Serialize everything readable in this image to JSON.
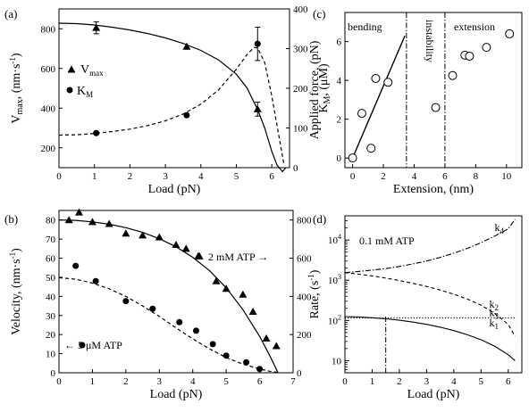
{
  "chart_data": [
    {
      "panel": "(a)",
      "type": "scatter",
      "xlabel": "Load (pN)",
      "ylabel": "V_max, (nm·s^-1)",
      "ylabel_right": "K_M, (μM)",
      "xlim": [
        0,
        6.5
      ],
      "ylim": [
        100,
        900
      ],
      "ylim_right": [
        0,
        400
      ],
      "xticks": [
        "0",
        "1",
        "2",
        "3",
        "4",
        "5",
        "6"
      ],
      "yticks": [
        "200",
        "400",
        "600",
        "800"
      ],
      "yticks_right": [
        "0",
        "100",
        "200",
        "300",
        "400"
      ],
      "series": [
        {
          "name": "V_max",
          "marker": "triangle",
          "axis": "left",
          "x": [
            1.05,
            3.6,
            5.6
          ],
          "y": [
            805,
            710,
            395
          ],
          "err": [
            30,
            0,
            35
          ],
          "fit": {
            "x": [
              0,
              0.5,
              1,
              1.5,
              2,
              2.5,
              3,
              3.5,
              4,
              4.5,
              5,
              5.3,
              5.6,
              5.8,
              6,
              6.15,
              6.3,
              6.4
            ],
            "y": [
              828,
              826,
              819,
              808,
              794,
              776,
              754,
              726,
              691,
              643,
              571,
              502,
              393,
              300,
              182,
              112,
              80,
              100
            ]
          }
        },
        {
          "name": "K_M",
          "marker": "circle",
          "axis": "right",
          "x": [
            1.05,
            3.6,
            5.6
          ],
          "y": [
            87,
            132,
            312
          ],
          "err": [
            0,
            0,
            42
          ],
          "fit": {
            "x": [
              0,
              0.5,
              1,
              1.5,
              2,
              2.5,
              3,
              3.5,
              4,
              4.5,
              5,
              5.3,
              5.5,
              5.6,
              5.8,
              6,
              6.2,
              6.35
            ],
            "y": [
              82,
              83,
              86,
              91,
              97,
              106,
              118,
              135,
              160,
              196,
              248,
              285,
              303,
              302,
              265,
              180,
              80,
              5
            ]
          }
        }
      ],
      "legend": [
        {
          "name": "V",
          "sub": "max"
        },
        {
          "name": "K",
          "sub": "M"
        }
      ]
    },
    {
      "panel": "(b)",
      "type": "scatter",
      "xlabel": "Load (pN)",
      "ylabel": "Velocity, (nm·s^-1)",
      "xlim": [
        0,
        7
      ],
      "ylim": [
        0,
        85
      ],
      "ylim_right": [
        0,
        850
      ],
      "xticks": [
        "0",
        "1",
        "2",
        "3",
        "4",
        "5",
        "6",
        "7"
      ],
      "yticks": [
        "0",
        "10",
        "20",
        "30",
        "40",
        "50",
        "60",
        "70",
        "80"
      ],
      "yticks_right": [
        "0",
        "200",
        "400",
        "600",
        "800"
      ],
      "series": [
        {
          "name": "2 mM ATP",
          "marker": "triangle",
          "axis": "left",
          "x": [
            0.3,
            0.6,
            1.0,
            1.5,
            2.0,
            2.5,
            3.0,
            3.5,
            3.8,
            4.2,
            4.7,
            5.0,
            5.5,
            5.8,
            6.2,
            6.5
          ],
          "y": [
            80,
            84,
            79,
            78,
            73,
            72,
            71,
            67,
            65,
            61,
            48,
            44,
            41,
            32,
            18,
            14
          ],
          "fit": {
            "x": [
              0,
              0.5,
              1,
              1.5,
              2,
              2.5,
              3,
              3.5,
              4,
              4.5,
              5,
              5.5,
              6,
              6.3,
              6.55
            ],
            "y": [
              80,
              79.8,
              79,
              77.8,
              76,
              73.5,
              70.2,
              66,
              60.5,
              53.5,
              44.5,
              33,
              19,
              9,
              0
            ]
          }
        },
        {
          "name": "5 μM ATP",
          "marker": "circle",
          "axis": "right",
          "x": [
            0.5,
            1.1,
            2.0,
            2.8,
            3.6,
            4.1,
            4.6,
            5.0,
            5.6,
            6.0
          ],
          "y": [
            560,
            480,
            375,
            335,
            265,
            220,
            150,
            90,
            55,
            20
          ],
          "fit": {
            "x": [
              0,
              0.5,
              1,
              1.5,
              2,
              2.5,
              3,
              3.5,
              4,
              4.5,
              5,
              5.5,
              6,
              6.3,
              6.6
            ],
            "y": [
              498,
              490,
              470,
              440,
              400,
              350,
              295,
              235,
              178,
              125,
              80,
              45,
              20,
              8,
              0
            ]
          }
        }
      ],
      "labels": {
        "high": "2 mM ATP",
        "low": "5 μM ATP"
      }
    },
    {
      "panel": "(c)",
      "type": "scatter",
      "xlabel": "Extension, (nm)",
      "ylabel": "Applied force, (pN)",
      "xlim": [
        -0.5,
        11
      ],
      "ylim": [
        -0.5,
        7.5
      ],
      "xticks": [
        "0",
        "2",
        "4",
        "6",
        "8",
        "10"
      ],
      "yticks": [
        "0",
        "2",
        "4",
        "6"
      ],
      "regions": [
        "bending",
        "instability",
        "extension"
      ],
      "boundaries": [
        3.5,
        6
      ],
      "series": [
        {
          "name": "",
          "marker": "open-circle",
          "x": [
            0,
            0.6,
            1.2,
            1.5,
            2.3,
            5.4,
            6.5,
            7.3,
            7.6,
            8.7,
            10.2
          ],
          "y": [
            0,
            2.3,
            0.5,
            4.1,
            3.9,
            2.6,
            4.25,
            5.3,
            5.25,
            5.7,
            6.4
          ],
          "fit": {
            "x": [
              0,
              3.4
            ],
            "y": [
              0,
              6.3
            ]
          }
        }
      ]
    },
    {
      "panel": "(d)",
      "type": "line",
      "xlabel": "Load (pN)",
      "ylabel": "Rate, (s^-1)",
      "yscale": "log",
      "xlim": [
        0,
        6.5
      ],
      "ylim": [
        5,
        40000
      ],
      "xticks": [
        "0",
        "1",
        "2",
        "3",
        "4",
        "5",
        "6"
      ],
      "yticks": [
        "10",
        "10^2",
        "10^3",
        "10^4"
      ],
      "annotation": "0.1 mM ATP",
      "marker_x": 1.5,
      "series": [
        {
          "name": "k_4",
          "style": "dashdot",
          "x": [
            0,
            0.5,
            1,
            1.5,
            2,
            2.5,
            3,
            3.5,
            4,
            4.5,
            5,
            5.5,
            6,
            6.25
          ],
          "y": [
            1550,
            1650,
            1780,
            1950,
            2200,
            2550,
            3000,
            3700,
            4700,
            6200,
            8600,
            12500,
            19000,
            33000
          ]
        },
        {
          "name": "k_2",
          "style": "dashed",
          "x": [
            0,
            0.5,
            1,
            1.5,
            2,
            2.5,
            3,
            3.5,
            4,
            4.5,
            5,
            5.5,
            6,
            6.25
          ],
          "y": [
            1550,
            1420,
            1280,
            1130,
            980,
            840,
            700,
            570,
            450,
            340,
            240,
            150,
            80,
            40
          ]
        },
        {
          "name": "k_3",
          "style": "dotted",
          "x": [
            0,
            6.3
          ],
          "y": [
            115,
            115
          ]
        },
        {
          "name": "k_1",
          "style": "solid",
          "x": [
            0,
            0.5,
            1,
            1.5,
            2,
            2.5,
            3,
            3.5,
            4,
            4.5,
            5,
            5.5,
            6,
            6.25
          ],
          "y": [
            125,
            122,
            117,
            110,
            101,
            91,
            80,
            68,
            56,
            44,
            33,
            23,
            14,
            10
          ]
        }
      ]
    }
  ]
}
